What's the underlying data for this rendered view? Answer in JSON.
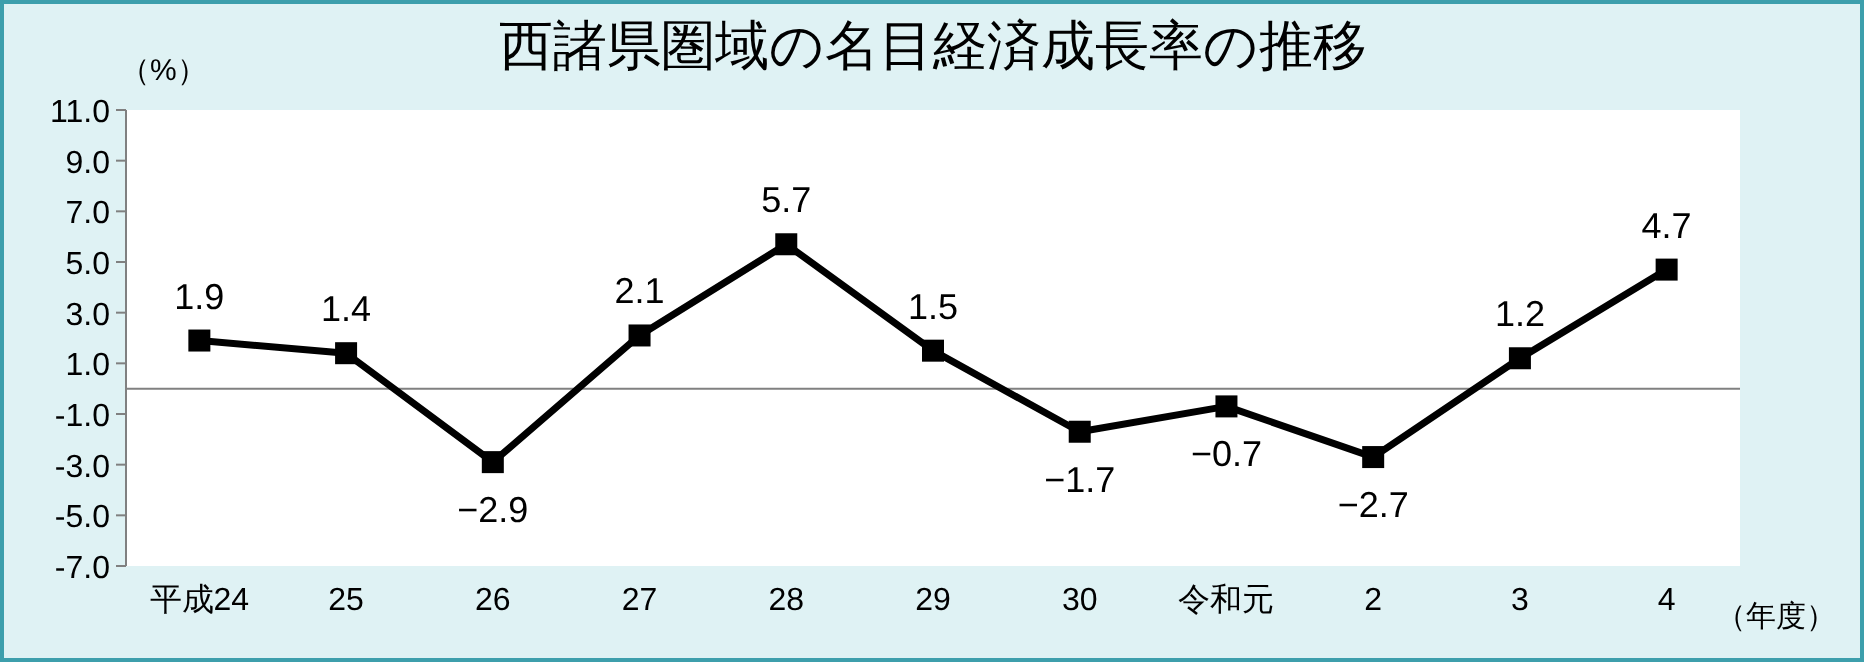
{
  "chart_data": {
    "type": "line",
    "title": "西諸県圏域の名目経済成長率の推移",
    "ylabel": "（%）",
    "xlabel": "（年度）",
    "categories": [
      "平成24",
      "25",
      "26",
      "27",
      "28",
      "29",
      "30",
      "令和元",
      "2",
      "3",
      "4"
    ],
    "series": [
      {
        "color": "#000000",
        "values": [
          1.9,
          1.4,
          -2.9,
          2.1,
          5.7,
          1.5,
          -1.7,
          -0.7,
          -2.7,
          1.2,
          4.7
        ]
      }
    ],
    "ylim": [
      -7,
      11
    ],
    "yticks": [
      {
        "value": 11,
        "label": "11.0"
      },
      {
        "value": 9,
        "label": "9.0"
      },
      {
        "value": 7,
        "label": "7.0"
      },
      {
        "value": 5,
        "label": "5.0"
      },
      {
        "value": 3,
        "label": "3.0"
      },
      {
        "value": 1,
        "label": "1.0"
      },
      {
        "value": -1,
        "label": "-1.0"
      },
      {
        "value": -3,
        "label": "-3.0"
      },
      {
        "value": -5,
        "label": "-5.0"
      },
      {
        "value": -7,
        "label": "-7.0"
      }
    ],
    "ref_lines": [
      {
        "axis": "y",
        "value": 0,
        "color": "#808080"
      }
    ],
    "marker": "square",
    "line_style": "solid",
    "data_labels": true
  }
}
